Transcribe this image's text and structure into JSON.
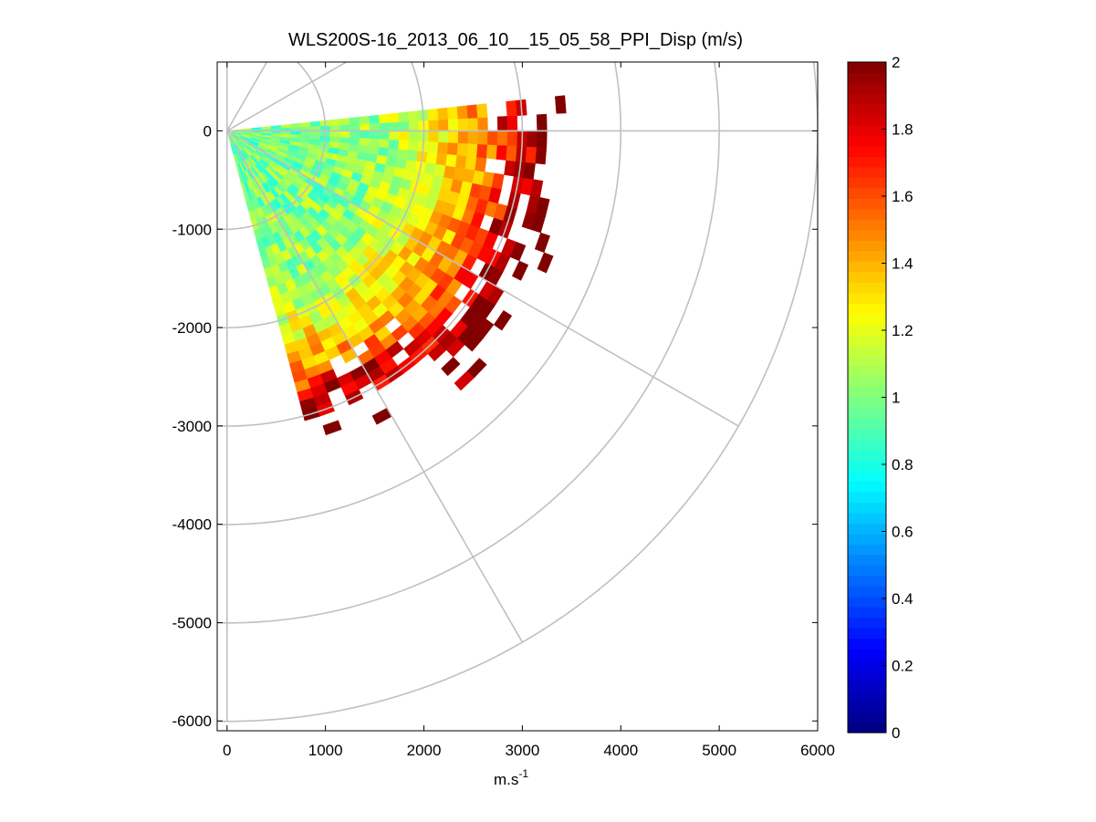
{
  "chart_data": {
    "type": "heatmap",
    "subtype": "polar PPI scan",
    "title": "WLS200S-16_2013_06_10__15_05_58_PPI_Disp (m/s)",
    "xlabel": "m.s",
    "xlabel_superscript": "-1",
    "ylabel": "",
    "xlim": [
      -100,
      6000
    ],
    "ylim": [
      -6100,
      700
    ],
    "x_ticks": [
      0,
      1000,
      2000,
      3000,
      4000,
      5000,
      6000
    ],
    "x_tick_labels": [
      "0",
      "1000",
      "2000",
      "3000",
      "4000",
      "5000",
      "6000"
    ],
    "y_ticks": [
      0,
      -1000,
      -2000,
      -3000,
      -4000,
      -5000,
      -6000
    ],
    "y_tick_labels": [
      "0",
      "-1000",
      "-2000",
      "-3000",
      "-4000",
      "-5000",
      "-6000"
    ],
    "polar_grid": {
      "ring_radii": [
        1000,
        2000,
        3000,
        4000,
        5000,
        6000
      ],
      "spoke_angles_deg": [
        0,
        -30,
        -60,
        -90,
        30,
        60,
        90
      ]
    },
    "scan": {
      "azimuth_range_deg": [
        -75,
        6
      ],
      "max_range_m": 3500,
      "gate_length_m": 100,
      "sector_width_deg": 3
    },
    "colorbar": {
      "colormap": "jet",
      "clim": [
        0,
        2
      ],
      "ticks": [
        0,
        0.2,
        0.4,
        0.6,
        0.8,
        1,
        1.2,
        1.4,
        1.6,
        1.8,
        2
      ],
      "tick_labels": [
        "0",
        "0.2",
        "0.4",
        "0.6",
        "0.8",
        "1",
        "1.2",
        "1.4",
        "1.6",
        "1.8",
        "2"
      ]
    },
    "value_profile": {
      "description": "dispersion ~0.9-1.1 near the lidar, rising to 1.6-2.0 at the outer edge",
      "range_m": [
        0,
        1000,
        1500,
        2000,
        2500,
        3000,
        3200
      ],
      "value": [
        0.95,
        1.0,
        1.05,
        1.2,
        1.45,
        1.8,
        2.0
      ]
    }
  }
}
